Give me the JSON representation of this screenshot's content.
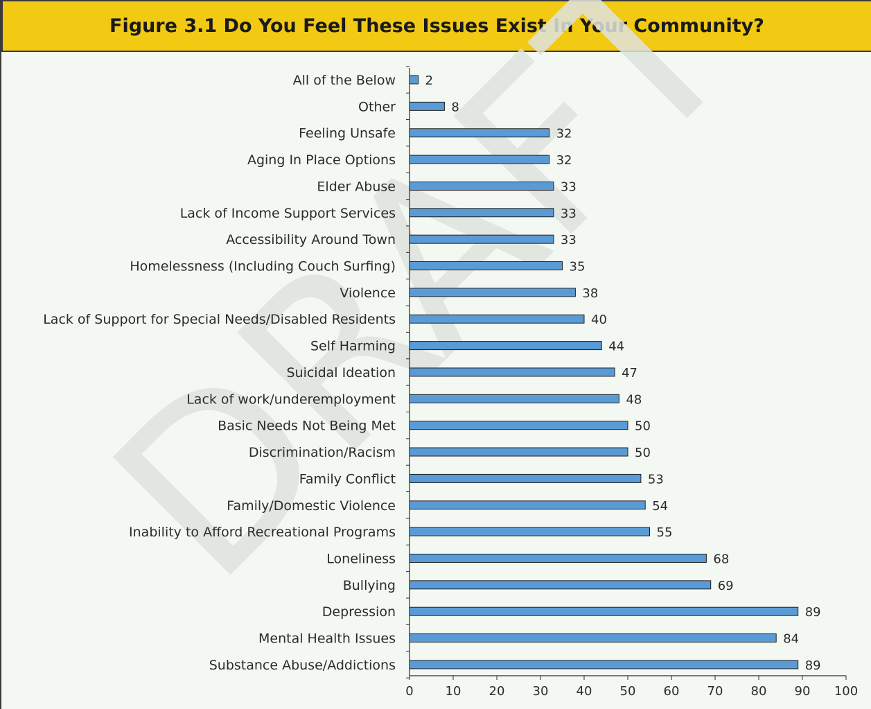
{
  "chart_data": {
    "type": "bar",
    "orientation": "horizontal",
    "title": "Figure 3.1 Do You Feel These Issues Exist In Your Community?",
    "watermark": "DRAFT",
    "categories": [
      "All of the Below",
      "Other",
      "Feeling Unsafe",
      "Aging In Place Options",
      "Elder Abuse",
      "Lack of Income Support Services",
      "Accessibility Around Town",
      "Homelessness (Including Couch Surfing)",
      "Violence",
      "Lack of Support for Special Needs/Disabled Residents",
      "Self Harming",
      "Suicidal Ideation",
      "Lack of work/underemployment",
      "Basic Needs Not Being Met",
      "Discrimination/Racism",
      "Family Conflict",
      "Family/Domestic Violence",
      "Inability to Afford Recreational Programs",
      "Loneliness",
      "Bullying",
      "Depression",
      "Mental Health Issues",
      "Substance Abuse/Addictions"
    ],
    "values": [
      2,
      8,
      32,
      32,
      33,
      33,
      33,
      35,
      38,
      40,
      44,
      47,
      48,
      50,
      50,
      53,
      54,
      55,
      68,
      69,
      89,
      84,
      89
    ],
    "xlim": [
      0,
      100
    ],
    "xticks": [
      0,
      10,
      20,
      30,
      40,
      50,
      60,
      70,
      80,
      90,
      100
    ],
    "grid": false,
    "bar_color": "#5b9bd5",
    "bar_edge_color": "#1f1f1f",
    "header_color": "#f2c913"
  }
}
